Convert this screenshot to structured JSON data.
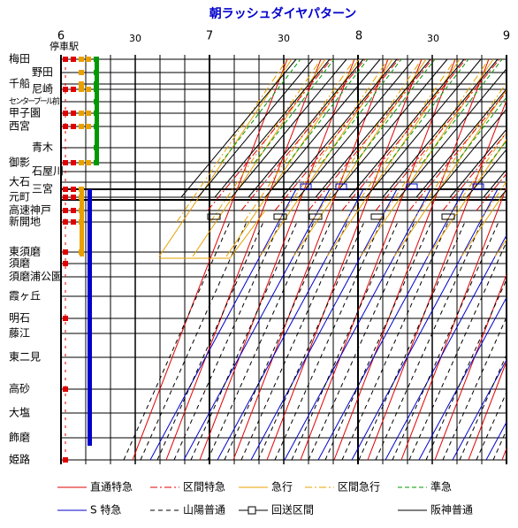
{
  "title": "朝ラッシュダイヤパターン",
  "stops_header": "停車駅",
  "time_labels": [
    "6",
    "30",
    "7",
    "30",
    "8",
    "30",
    "9"
  ],
  "stations": [
    "梅田",
    "野田",
    "千船",
    "尼崎",
    "センタープール前",
    "甲子園",
    "西宮",
    "青木",
    "御影",
    "石屋川",
    "大石",
    "三宮",
    "元町",
    "高速神戸",
    "新開地",
    "東須磨",
    "須磨",
    "須磨浦公園",
    "霞ヶ丘",
    "明石",
    "藤江",
    "東二見",
    "高砂",
    "大塩",
    "飾磨",
    "姫路"
  ],
  "legend": [
    "直通特急",
    "区間特急",
    "急行",
    "区間急行",
    "準急",
    "S 特急",
    "山陽普通",
    "回送区間",
    "阪神普通"
  ]
}
